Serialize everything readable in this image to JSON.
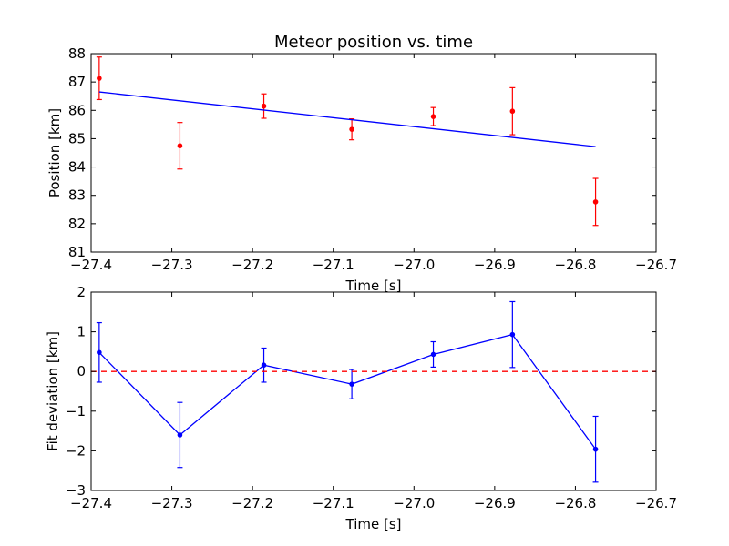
{
  "chart_data": [
    {
      "type": "scatter",
      "title": "Meteor position vs. time",
      "xlabel": "Time [s]",
      "ylabel": "Position [km]",
      "xlim": [
        -27.4,
        -26.7
      ],
      "ylim": [
        81,
        88
      ],
      "xticks": [
        "−27.4",
        "−27.3",
        "−27.2",
        "−27.1",
        "−27.0",
        "−26.9",
        "−26.8",
        "−26.7"
      ],
      "xtick_values": [
        -27.4,
        -27.3,
        -27.2,
        -27.1,
        -27.0,
        -26.9,
        -26.8,
        -26.7
      ],
      "yticks": [
        "81",
        "82",
        "83",
        "84",
        "85",
        "86",
        "87",
        "88"
      ],
      "ytick_values": [
        81,
        82,
        83,
        84,
        85,
        86,
        87,
        88
      ],
      "grid": false,
      "series": [
        {
          "kind": "errorbar",
          "color": "#ff0000",
          "x": [
            -27.39,
            -27.29,
            -27.186,
            -27.077,
            -26.976,
            -26.878,
            -26.775
          ],
          "y": [
            87.13,
            84.75,
            86.15,
            85.33,
            85.78,
            85.97,
            82.77
          ],
          "yerr": [
            0.75,
            0.82,
            0.43,
            0.37,
            0.32,
            0.83,
            0.83
          ]
        },
        {
          "kind": "line",
          "color": "#0000ff",
          "x": [
            -27.39,
            -26.775
          ],
          "y": [
            86.65,
            84.72
          ]
        }
      ]
    },
    {
      "type": "line",
      "title": "",
      "xlabel": "Time [s]",
      "ylabel": "Fit deviation [km]",
      "xlim": [
        -27.4,
        -26.7
      ],
      "ylim": [
        -3,
        2
      ],
      "xticks": [
        "−27.4",
        "−27.3",
        "−27.2",
        "−27.1",
        "−27.0",
        "−26.9",
        "−26.8",
        "−26.7"
      ],
      "xtick_values": [
        -27.4,
        -27.3,
        -27.2,
        -27.1,
        -27.0,
        -26.9,
        -26.8,
        -26.7
      ],
      "yticks": [
        "−3",
        "−2",
        "−1",
        "0",
        "1",
        "2"
      ],
      "ytick_values": [
        -3,
        -2,
        -1,
        0,
        1,
        2
      ],
      "grid": false,
      "series": [
        {
          "kind": "errorbar-line",
          "color": "#0000ff",
          "x": [
            -27.39,
            -27.29,
            -27.186,
            -27.077,
            -26.976,
            -26.878,
            -26.775
          ],
          "y": [
            0.48,
            -1.6,
            0.16,
            -0.32,
            0.43,
            0.93,
            -1.96
          ],
          "yerr": [
            0.75,
            0.82,
            0.43,
            0.37,
            0.32,
            0.83,
            0.83
          ]
        },
        {
          "kind": "hline-dashed",
          "color": "#ff0000",
          "y": 0
        }
      ]
    }
  ]
}
